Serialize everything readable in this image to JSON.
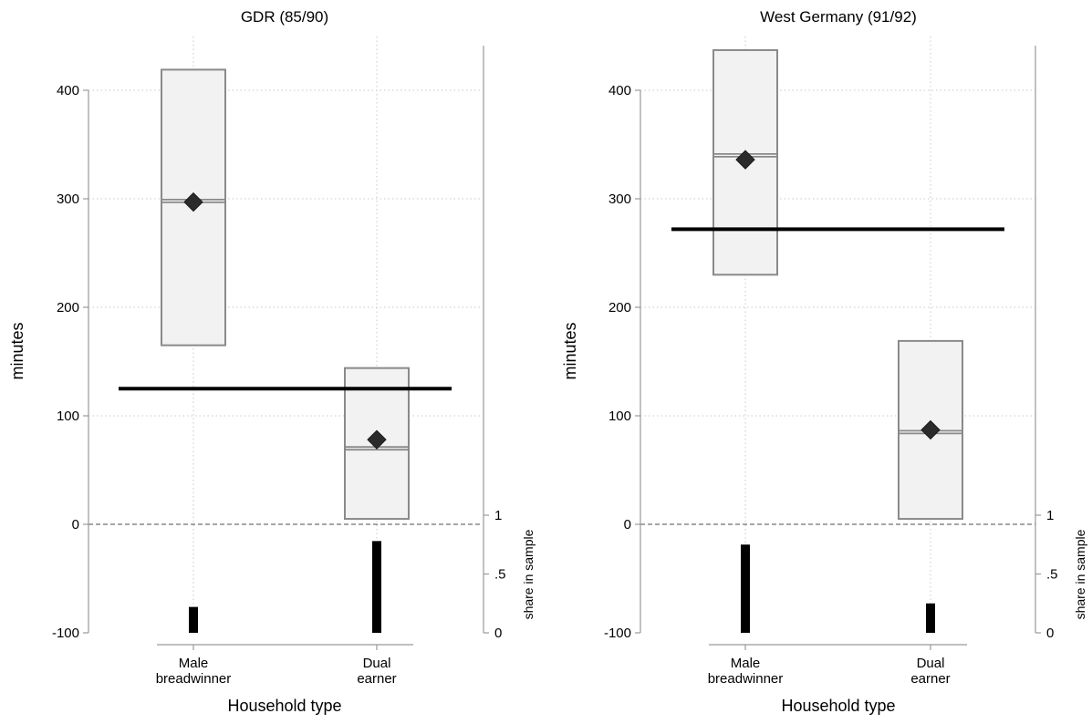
{
  "chart_data": [
    {
      "type": "box",
      "title": "GDR (85/90)",
      "xlabel": "Household type",
      "ylabel": "minutes",
      "y2label": "share in sample",
      "ylim": [
        -100,
        400
      ],
      "yticks": [
        -100,
        0,
        100,
        200,
        300,
        400
      ],
      "y2ticks": [
        {
          "value": 0,
          "label": "0"
        },
        {
          "value": 0.5,
          "label": ".5"
        },
        {
          "value": 1,
          "label": "1"
        }
      ],
      "categories": [
        {
          "line1": "Male",
          "line2": "breadwinner"
        },
        {
          "line1": "Dual",
          "line2": "earner"
        }
      ],
      "boxes": [
        {
          "q1": 165,
          "median": 298,
          "q3": 419,
          "mean": 297
        },
        {
          "q1": 5,
          "median": 70,
          "q3": 144,
          "mean": 78
        }
      ],
      "overall_mean": 125,
      "share_in_sample": [
        0.22,
        0.78
      ]
    },
    {
      "type": "box",
      "title": "West Germany (91/92)",
      "xlabel": "Household type",
      "ylabel": "minutes",
      "y2label": "share in sample",
      "ylim": [
        -100,
        400
      ],
      "yticks": [
        -100,
        0,
        100,
        200,
        300,
        400
      ],
      "y2ticks": [
        {
          "value": 0,
          "label": "0"
        },
        {
          "value": 0.5,
          "label": ".5"
        },
        {
          "value": 1,
          "label": "1"
        }
      ],
      "categories": [
        {
          "line1": "Male",
          "line2": "breadwinner"
        },
        {
          "line1": "Dual",
          "line2": "earner"
        }
      ],
      "boxes": [
        {
          "q1": 230,
          "median": 340,
          "q3": 437,
          "mean": 336
        },
        {
          "q1": 5,
          "median": 85,
          "q3": 169,
          "mean": 87
        }
      ],
      "overall_mean": 272,
      "share_in_sample": [
        0.75,
        0.25
      ]
    }
  ]
}
